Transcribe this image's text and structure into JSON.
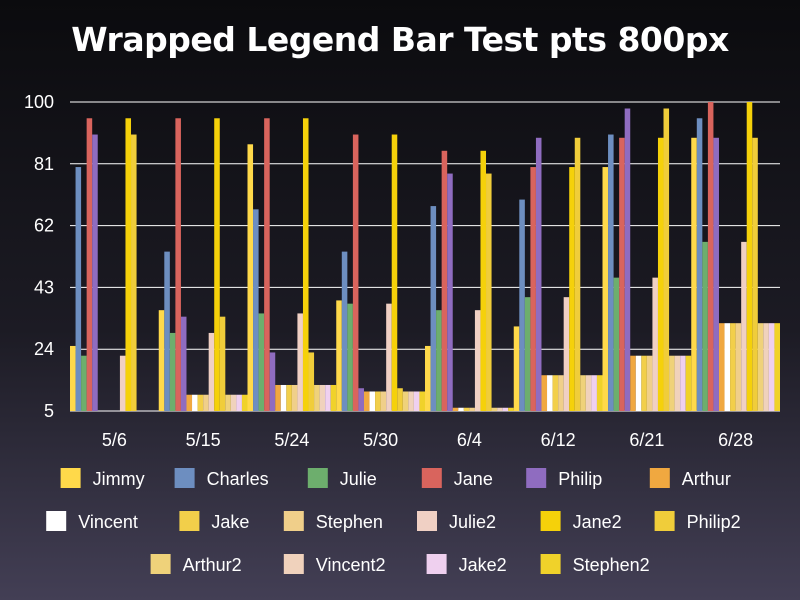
{
  "chart_data": {
    "type": "bar",
    "title": "Wrapped Legend Bar Test pts 800px",
    "xlabel": "",
    "ylabel": "",
    "ylim": [
      5,
      100
    ],
    "yticks": [
      5,
      24,
      43,
      62,
      81,
      100
    ],
    "grid": true,
    "legend_position": "bottom",
    "categories": [
      "5/6",
      "5/15",
      "5/24",
      "5/30",
      "6/4",
      "6/12",
      "6/21",
      "6/28"
    ],
    "series": [
      {
        "name": "Jimmy",
        "color": "#ffd94a",
        "values": [
          25,
          36,
          87,
          39,
          25,
          31,
          80,
          89
        ]
      },
      {
        "name": "Charles",
        "color": "#6d8ec0",
        "values": [
          80,
          54,
          67,
          54,
          68,
          70,
          90,
          95
        ]
      },
      {
        "name": "Julie",
        "color": "#6dae6d",
        "values": [
          22,
          29,
          35,
          38,
          36,
          40,
          46,
          57
        ]
      },
      {
        "name": "Jane",
        "color": "#d9645d",
        "values": [
          95,
          95,
          95,
          90,
          85,
          80,
          89,
          100
        ]
      },
      {
        "name": "Philip",
        "color": "#8f6cc0",
        "values": [
          90,
          34,
          23,
          12,
          78,
          89,
          98,
          89
        ]
      },
      {
        "name": "Arthur",
        "color": "#f0a840",
        "values": [
          5,
          10,
          13,
          11,
          6,
          16,
          22,
          32
        ]
      },
      {
        "name": "Vincent",
        "color": "#ffffff",
        "values": [
          5,
          10,
          13,
          11,
          6,
          16,
          22,
          32
        ]
      },
      {
        "name": "Jake",
        "color": "#f2cf4a",
        "values": [
          5,
          10,
          13,
          11,
          6,
          16,
          22,
          32
        ]
      },
      {
        "name": "Stephen",
        "color": "#f0cf8a",
        "values": [
          5,
          10,
          13,
          11,
          6,
          16,
          22,
          32
        ]
      },
      {
        "name": "Julie2",
        "color": "#f0d0c4",
        "values": [
          22,
          29,
          35,
          38,
          36,
          40,
          46,
          57
        ]
      },
      {
        "name": "Jane2",
        "color": "#f5d10a",
        "values": [
          95,
          95,
          95,
          90,
          85,
          80,
          89,
          100
        ]
      },
      {
        "name": "Philip2",
        "color": "#f0cd3a",
        "values": [
          90,
          34,
          23,
          12,
          78,
          89,
          98,
          89
        ]
      },
      {
        "name": "Arthur2",
        "color": "#efd27a",
        "values": [
          5,
          10,
          13,
          11,
          6,
          16,
          22,
          32
        ]
      },
      {
        "name": "Vincent2",
        "color": "#f0d2bc",
        "values": [
          5,
          10,
          13,
          11,
          6,
          16,
          22,
          32
        ]
      },
      {
        "name": "Jake2",
        "color": "#efd0ef",
        "values": [
          5,
          10,
          13,
          11,
          6,
          16,
          22,
          32
        ]
      },
      {
        "name": "Stephen2",
        "color": "#f0d22a",
        "values": [
          5,
          10,
          13,
          11,
          6,
          16,
          22,
          32
        ]
      }
    ]
  }
}
